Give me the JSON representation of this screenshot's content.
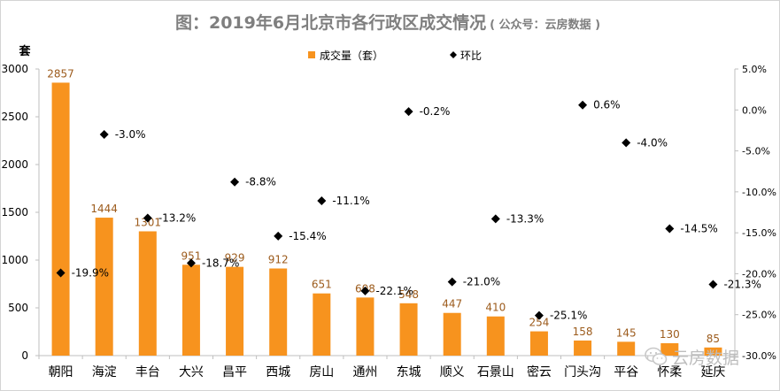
{
  "chart_data": {
    "type": "bar",
    "title": "图：2019年6月北京市各行政区成交情况",
    "title_note": "( 公众号：云房数据 )",
    "y_unit_label": "套",
    "categories": [
      "朝阳",
      "海淀",
      "丰台",
      "大兴",
      "昌平",
      "西城",
      "房山",
      "通州",
      "东城",
      "顺义",
      "石景山",
      "密云",
      "门头沟",
      "平谷",
      "怀柔",
      "延庆"
    ],
    "series": [
      {
        "name": "成交量（套）",
        "type": "bar",
        "axis": "left",
        "color": "#f7931e",
        "values": [
          2857,
          1444,
          1301,
          951,
          929,
          912,
          651,
          608,
          548,
          447,
          410,
          254,
          158,
          145,
          130,
          85
        ]
      },
      {
        "name": "环比",
        "type": "scatter",
        "axis": "right",
        "color": "#000000",
        "values": [
          -19.9,
          -3.0,
          -13.2,
          -18.7,
          -8.8,
          -15.4,
          -11.1,
          -22.1,
          -0.2,
          -21.0,
          -13.3,
          -25.1,
          0.6,
          -4.0,
          -14.5,
          -21.3
        ]
      }
    ],
    "ylim": [
      0,
      3000
    ],
    "y_ticks": [
      0,
      500,
      1000,
      1500,
      2000,
      2500,
      3000
    ],
    "y2lim": [
      -30.0,
      5.0
    ],
    "y2_ticks": [
      -30.0,
      -25.0,
      -20.0,
      -15.0,
      -10.0,
      -5.0,
      0.0,
      5.0
    ],
    "y2_tick_labels": [
      "-30.0%",
      "-25.0%",
      "-20.0%",
      "-15.0%",
      "-10.0%",
      "-5.0%",
      "0.0%",
      "5.0%"
    ],
    "bar_labels": [
      "2857",
      "1444",
      "1301",
      "951",
      "929",
      "912",
      "651",
      "608",
      "548",
      "447",
      "410",
      "254",
      "158",
      "145",
      "130",
      "85"
    ],
    "point_labels": [
      "-19.9%",
      "-3.0%",
      "-13.2%",
      "-18.7%",
      "-8.8%",
      "-15.4%",
      "-11.1%",
      "-22.1%",
      "-0.2%",
      "-21.0%",
      "-13.3%",
      "-25.1%",
      "0.6%",
      "-4.0%",
      "-14.5%",
      "-21.3%"
    ],
    "legend_position": "top-center",
    "grid": false,
    "colors": {
      "bar": "#f7931e",
      "bar_label": "#9c5b1c",
      "title": "#7f7f7f",
      "axis_text": "#000000",
      "axis_line": "#bfbfbf"
    }
  },
  "watermark": {
    "icon": "wechat-bubble-icon",
    "text": "云房数据"
  }
}
